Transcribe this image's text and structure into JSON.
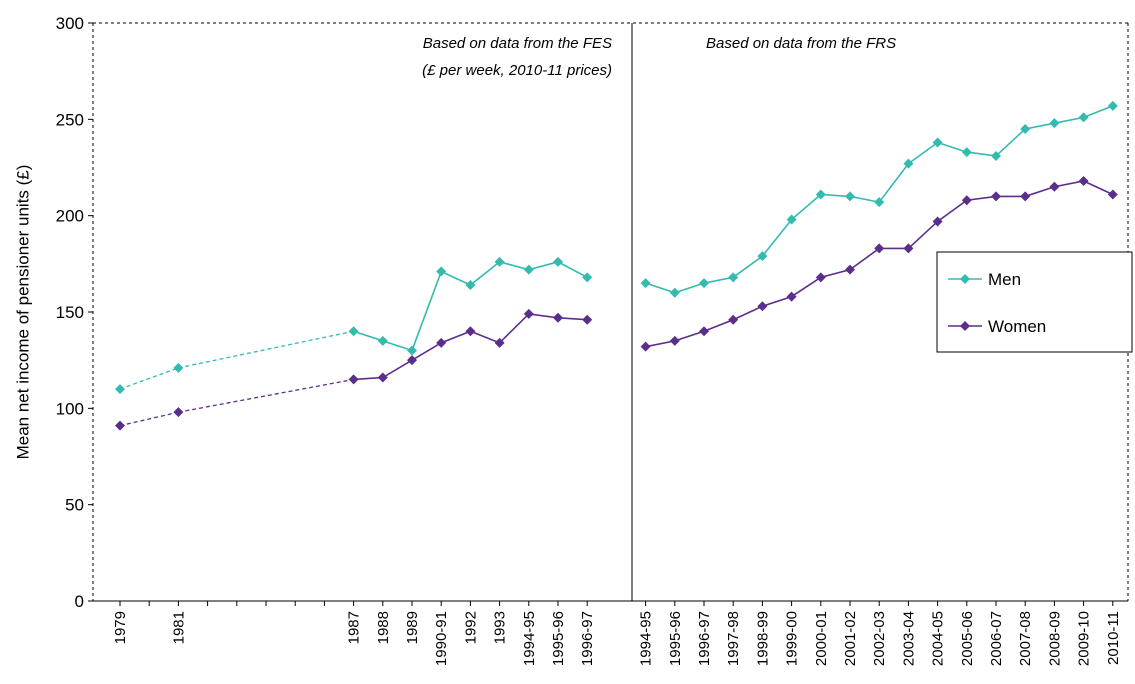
{
  "chart_data": [
    {
      "type": "line",
      "y_label": "Mean net income of pensioner units (£)",
      "annotation": [
        "Based on data from the FES",
        "(£ per week, 2010-11 prices)"
      ],
      "categories": [
        "1979",
        null,
        "1981",
        null,
        null,
        null,
        null,
        null,
        "1987",
        "1988",
        "1989",
        "1990-91",
        "1992",
        "1993",
        "1994-95",
        "1995-96",
        "1996-97"
      ],
      "gaps": "dashed",
      "ylim": [
        0,
        300
      ],
      "yticks": [
        0,
        50,
        100,
        150,
        200,
        250,
        300
      ],
      "series": [
        {
          "color": "#33bbb0",
          "values": [
            110,
            null,
            121,
            null,
            null,
            null,
            null,
            null,
            140,
            135,
            130,
            171,
            164,
            176,
            172,
            176,
            168
          ]
        },
        {
          "color": "#5b2e8c",
          "values": [
            91,
            null,
            98,
            null,
            null,
            null,
            null,
            null,
            115,
            116,
            125,
            134,
            140,
            134,
            149,
            147,
            146
          ]
        }
      ]
    },
    {
      "type": "line",
      "annotation": [
        "Based on data from the FRS"
      ],
      "categories": [
        "1994-95",
        "1995-96",
        "1996-97",
        "1997-98",
        "1998-99",
        "1999-00",
        "2000-01",
        "2001-02",
        "2002-03",
        "2003-04",
        "2004-05",
        "2005-06",
        "2006-07",
        "2007-08",
        "2008-09",
        "2009-10",
        "2010-11"
      ],
      "ylim": [
        0,
        300
      ],
      "yticks": [
        0,
        50,
        100,
        150,
        200,
        250,
        300
      ],
      "legend": "right",
      "series": [
        {
          "name": "Men",
          "color": "#33bbb0",
          "values": [
            165,
            160,
            165,
            168,
            179,
            198,
            211,
            210,
            207,
            227,
            238,
            233,
            231,
            245,
            248,
            251,
            257
          ]
        },
        {
          "name": "Women",
          "color": "#5b2e8c",
          "values": [
            132,
            135,
            140,
            146,
            153,
            158,
            168,
            172,
            183,
            183,
            197,
            208,
            210,
            210,
            215,
            218,
            211
          ]
        }
      ]
    }
  ]
}
